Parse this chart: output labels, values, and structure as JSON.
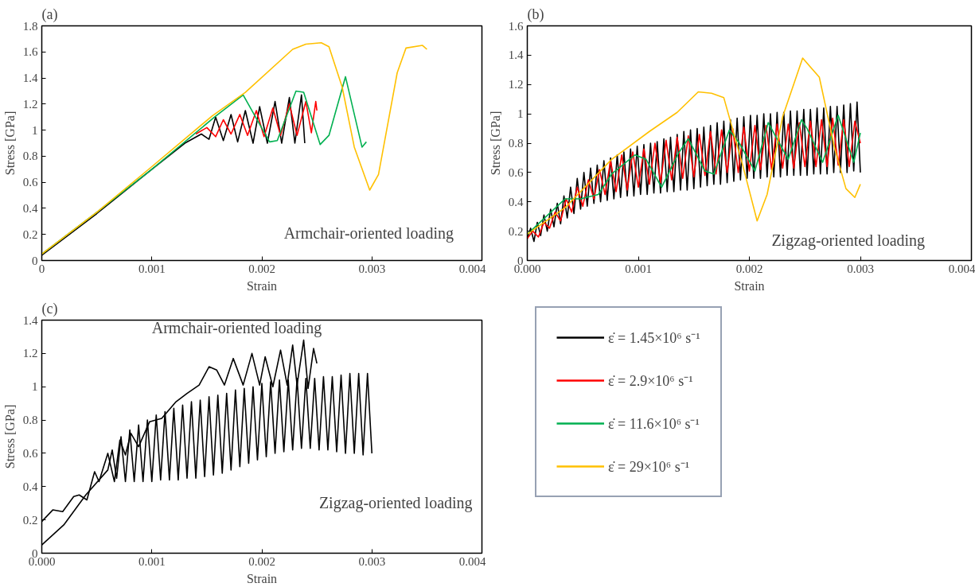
{
  "chart_data": [
    {
      "type": "line",
      "title": "(a)",
      "xlabel": "Strain",
      "ylabel": "Stress [GPa]",
      "xlim": [
        0,
        0.004
      ],
      "ylim": [
        0,
        1.8
      ],
      "xticks": [
        0,
        0.001,
        0.002,
        0.003,
        0.004
      ],
      "yticks": [
        0,
        0.2,
        0.4,
        0.6,
        0.8,
        1,
        1.2,
        1.4,
        1.6,
        1.8
      ],
      "annotations": [
        "Armchair-oriented loading"
      ],
      "series": [
        {
          "color": "#000000",
          "x": [
            0,
            0.0005,
            0.001,
            0.0013,
            0.00145,
            0.00152,
            0.00158,
            0.00165,
            0.00172,
            0.00178,
            0.00185,
            0.00192,
            0.00198,
            0.00205,
            0.00212,
            0.00218,
            0.00225,
            0.0023,
            0.00236,
            0.00239
          ],
          "values": [
            0.04,
            0.36,
            0.7,
            0.9,
            0.97,
            0.93,
            1.1,
            0.92,
            1.12,
            0.91,
            1.15,
            0.9,
            1.18,
            0.9,
            1.22,
            0.9,
            1.25,
            0.9,
            1.27,
            0.9
          ]
        },
        {
          "color": "#ff0000",
          "x": [
            0.0014,
            0.0015,
            0.00158,
            0.00165,
            0.00172,
            0.0018,
            0.00187,
            0.00195,
            0.00202,
            0.0021,
            0.00217,
            0.00225,
            0.00232,
            0.0024,
            0.00245,
            0.00249,
            0.0025
          ],
          "values": [
            0.97,
            1.02,
            0.95,
            1.08,
            0.97,
            1.12,
            0.96,
            1.15,
            0.95,
            1.17,
            0.96,
            1.2,
            0.96,
            1.22,
            0.98,
            1.22,
            1.15
          ]
        },
        {
          "color": "#00b050",
          "x": [
            0,
            0.0005,
            0.001,
            0.00157,
            0.00183,
            0.00207,
            0.00214,
            0.00231,
            0.00238,
            0.00253,
            0.00261,
            0.00276,
            0.00291,
            0.00295
          ],
          "values": [
            0.05,
            0.37,
            0.7,
            1.1,
            1.27,
            0.91,
            0.92,
            1.3,
            1.29,
            0.89,
            0.96,
            1.41,
            0.87,
            0.91
          ]
        },
        {
          "color": "#ffc000",
          "x": [
            0,
            0.0005,
            0.001,
            0.00155,
            0.00185,
            0.00228,
            0.0024,
            0.00254,
            0.00261,
            0.00273,
            0.00284,
            0.00298,
            0.00306,
            0.00323,
            0.00331,
            0.00346,
            0.0035
          ],
          "values": [
            0.05,
            0.37,
            0.72,
            1.11,
            1.29,
            1.62,
            1.66,
            1.67,
            1.64,
            1.33,
            0.87,
            0.54,
            0.66,
            1.44,
            1.63,
            1.65,
            1.62
          ]
        }
      ]
    },
    {
      "type": "line",
      "title": "(b)",
      "xlabel": "Strain",
      "ylabel": "Stress [GPa]",
      "xlim": [
        0,
        0.004
      ],
      "ylim": [
        0,
        1.6
      ],
      "xticks": [
        {
          "value": 0,
          "label": "0.000"
        },
        0.001,
        0.002,
        0.003,
        0.004
      ],
      "yticks": [
        0,
        0.2,
        0.4,
        0.6,
        0.8,
        1,
        1.2,
        1.4,
        1.6
      ],
      "annotations": [
        "Zigzag-oriented loading"
      ],
      "legend": "bottom",
      "series": [
        {
          "name": "ε̇ = 1.45×10⁶ s⁻¹",
          "color": "#000000",
          "x": [
            0,
            3e-05,
            6e-05,
            9e-05,
            0.00012,
            0.00015,
            0.00018,
            0.00021,
            0.00024,
            0.00027,
            0.0003,
            0.00033,
            0.00036,
            0.00039,
            0.00042,
            0.00045,
            0.00048,
            0.00051,
            0.00054,
            0.00057,
            0.0006,
            0.00063,
            0.00066,
            0.00069,
            0.00072,
            0.00075,
            0.00078,
            0.00081,
            0.00084,
            0.00087,
            0.0009,
            0.00093,
            0.00096,
            0.00099,
            0.00102,
            0.00105,
            0.00108,
            0.00111,
            0.00114,
            0.00117,
            0.0012,
            0.00123,
            0.00126,
            0.00129,
            0.00132,
            0.00135,
            0.00138,
            0.00141,
            0.00144,
            0.00147,
            0.0015,
            0.00153,
            0.00156,
            0.00159,
            0.00162,
            0.00165,
            0.00168,
            0.00171,
            0.00174,
            0.00177,
            0.0018,
            0.00183,
            0.00186,
            0.00189,
            0.00192,
            0.00195,
            0.00198,
            0.00201,
            0.00204,
            0.00207,
            0.0021,
            0.00213,
            0.00216,
            0.00219,
            0.00222,
            0.00225,
            0.00228,
            0.00231,
            0.00234,
            0.00237,
            0.0024,
            0.00243,
            0.00246,
            0.00249,
            0.00252,
            0.00255,
            0.00258,
            0.00261,
            0.00264,
            0.00267,
            0.0027,
            0.00273,
            0.00276,
            0.00279,
            0.00282,
            0.00285,
            0.00288,
            0.00291,
            0.00294,
            0.00297,
            0.003
          ],
          "values": [
            0.15,
            0.22,
            0.13,
            0.26,
            0.17,
            0.31,
            0.2,
            0.35,
            0.23,
            0.39,
            0.25,
            0.44,
            0.29,
            0.5,
            0.32,
            0.56,
            0.35,
            0.6,
            0.37,
            0.63,
            0.39,
            0.65,
            0.4,
            0.68,
            0.41,
            0.7,
            0.42,
            0.72,
            0.43,
            0.74,
            0.44,
            0.76,
            0.44,
            0.78,
            0.45,
            0.79,
            0.45,
            0.8,
            0.46,
            0.81,
            0.46,
            0.83,
            0.47,
            0.84,
            0.47,
            0.86,
            0.48,
            0.88,
            0.48,
            0.89,
            0.49,
            0.9,
            0.5,
            0.91,
            0.51,
            0.92,
            0.52,
            0.94,
            0.52,
            0.95,
            0.53,
            0.96,
            0.54,
            0.97,
            0.55,
            0.98,
            0.56,
            0.99,
            0.56,
            0.99,
            0.56,
            1.0,
            0.57,
            1.0,
            0.57,
            1.01,
            0.57,
            1.01,
            0.58,
            1.02,
            0.58,
            1.02,
            0.58,
            1.03,
            0.58,
            1.03,
            0.59,
            1.04,
            0.59,
            1.04,
            0.59,
            1.05,
            0.6,
            1.05,
            0.6,
            1.06,
            0.6,
            1.07,
            0.61,
            1.08,
            0.6
          ]
        },
        {
          "name": "ε̇ = 2.9×10⁶ s⁻¹",
          "color": "#ff0000",
          "x": [
            0,
            5e-05,
            0.0001,
            0.00015,
            0.0002,
            0.00025,
            0.0003,
            0.00035,
            0.0004,
            0.00045,
            0.0005,
            0.00055,
            0.0006,
            0.00065,
            0.0007,
            0.00075,
            0.0008,
            0.00085,
            0.0009,
            0.00095,
            0.001,
            0.00105,
            0.0011,
            0.00115,
            0.0012,
            0.00125,
            0.0013,
            0.00135,
            0.0014,
            0.00145,
            0.0015,
            0.00155,
            0.0016,
            0.00165,
            0.0017,
            0.00175,
            0.0018,
            0.00185,
            0.0019,
            0.00195,
            0.002,
            0.00205,
            0.0021,
            0.00215,
            0.0022,
            0.00225,
            0.0023,
            0.00235,
            0.0024,
            0.00245,
            0.0025,
            0.00255,
            0.0026,
            0.00265,
            0.0027,
            0.00275,
            0.0028,
            0.00285,
            0.0029,
            0.00295,
            0.003
          ],
          "values": [
            0.15,
            0.2,
            0.16,
            0.26,
            0.22,
            0.33,
            0.27,
            0.42,
            0.33,
            0.5,
            0.37,
            0.55,
            0.42,
            0.62,
            0.45,
            0.68,
            0.47,
            0.72,
            0.48,
            0.74,
            0.5,
            0.76,
            0.52,
            0.8,
            0.53,
            0.82,
            0.55,
            0.84,
            0.56,
            0.85,
            0.57,
            0.86,
            0.58,
            0.88,
            0.59,
            0.89,
            0.6,
            0.9,
            0.6,
            0.91,
            0.61,
            0.92,
            0.62,
            0.92,
            0.62,
            0.93,
            0.63,
            0.93,
            0.63,
            0.94,
            0.64,
            0.95,
            0.64,
            0.96,
            0.64,
            0.97,
            0.65,
            0.96,
            0.64,
            0.95,
            0.8
          ]
        },
        {
          "name": "ε̇ = 11.6×10⁶ s⁻¹",
          "color": "#00b050",
          "x": [
            0,
            0.00034,
            0.00048,
            0.00064,
            0.00076,
            0.00097,
            0.00107,
            0.00121,
            0.00136,
            0.00145,
            0.0016,
            0.00168,
            0.00182,
            0.00191,
            0.00205,
            0.00217,
            0.00227,
            0.00235,
            0.00247,
            0.00252,
            0.00266,
            0.0028,
            0.00294,
            0.003
          ],
          "values": [
            0.18,
            0.42,
            0.42,
            0.45,
            0.59,
            0.72,
            0.69,
            0.5,
            0.73,
            0.83,
            0.61,
            0.59,
            0.89,
            0.8,
            0.61,
            0.94,
            0.8,
            0.69,
            0.96,
            0.9,
            0.67,
            0.99,
            0.67,
            0.87
          ]
        },
        {
          "name": "ε̇ = 29×10⁶ s⁻¹",
          "color": "#ffc000",
          "x": [
            0,
            0.00034,
            0.00076,
            0.0011,
            0.00135,
            0.00154,
            0.00166,
            0.00177,
            0.00194,
            0.00207,
            0.00216,
            0.0023,
            0.00248,
            0.00263,
            0.00277,
            0.00287,
            0.00295,
            0.003
          ],
          "values": [
            0.18,
            0.36,
            0.69,
            0.88,
            1.01,
            1.15,
            1.14,
            1.11,
            0.65,
            0.27,
            0.45,
            0.98,
            1.38,
            1.25,
            0.76,
            0.49,
            0.43,
            0.52
          ]
        }
      ]
    },
    {
      "type": "line",
      "title": "(c)",
      "xlabel": "Strain",
      "ylabel": "Stress [GPa]",
      "xlim": [
        0,
        0.004
      ],
      "ylim": [
        0,
        1.4
      ],
      "xticks": [
        {
          "value": 0,
          "label": "0.000"
        },
        0.001,
        0.002,
        0.003,
        0.004
      ],
      "yticks": [
        0,
        0.2,
        0.4,
        0.6,
        0.8,
        1,
        1.2,
        1.4
      ],
      "annotations": [
        "Armchair-oriented loading",
        "Zigzag-oriented loading"
      ],
      "series": [
        {
          "color": "#000000",
          "x": [
            0,
            0.0001,
            0.00019,
            0.00029,
            0.00034,
            0.00041,
            0.00048,
            0.00052,
            0.0006,
            0.00066,
            0.00071,
            0.00076,
            0.00081,
            0.00088,
            0.00098,
            0.00109,
            0.00122,
            0.00132,
            0.00143,
            0.00152,
            0.00159,
            0.00166,
            0.00174,
            0.00183,
            0.00191,
            0.00198,
            0.00203,
            0.0021,
            0.00217,
            0.00223,
            0.00228,
            0.00232,
            0.00238,
            0.00242,
            0.00247,
            0.0025
          ],
          "values": [
            0.19,
            0.26,
            0.25,
            0.34,
            0.35,
            0.32,
            0.49,
            0.43,
            0.6,
            0.43,
            0.68,
            0.59,
            0.72,
            0.64,
            0.79,
            0.81,
            0.91,
            0.96,
            1.01,
            1.12,
            1.1,
            1.01,
            1.17,
            1.01,
            1.2,
            1.01,
            1.18,
            1.0,
            1.22,
            1.01,
            1.25,
            1.01,
            1.28,
            0.99,
            1.23,
            1.14
          ]
        },
        {
          "color": "#000000",
          "x": [
            0,
            0.0002,
            0.0004,
            0.0006,
            0.00064,
            0.00068,
            0.00072,
            0.00076,
            0.0008,
            0.00084,
            0.00088,
            0.00092,
            0.00096,
            0.001,
            0.00104,
            0.00108,
            0.00112,
            0.00116,
            0.0012,
            0.00124,
            0.00128,
            0.00132,
            0.00136,
            0.0014,
            0.00144,
            0.00148,
            0.00152,
            0.00156,
            0.0016,
            0.00164,
            0.00168,
            0.00172,
            0.00176,
            0.0018,
            0.00184,
            0.00188,
            0.00192,
            0.00196,
            0.002,
            0.00204,
            0.00208,
            0.00212,
            0.00216,
            0.0022,
            0.00224,
            0.00228,
            0.00232,
            0.00236,
            0.0024,
            0.00244,
            0.00248,
            0.00252,
            0.00256,
            0.0026,
            0.00264,
            0.00268,
            0.00272,
            0.00276,
            0.0028,
            0.00284,
            0.00288,
            0.00292,
            0.00296,
            0.003
          ],
          "values": [
            0.05,
            0.17,
            0.35,
            0.5,
            0.62,
            0.45,
            0.7,
            0.43,
            0.74,
            0.43,
            0.77,
            0.43,
            0.8,
            0.43,
            0.83,
            0.44,
            0.85,
            0.44,
            0.87,
            0.44,
            0.89,
            0.45,
            0.91,
            0.45,
            0.92,
            0.46,
            0.94,
            0.47,
            0.95,
            0.48,
            0.96,
            0.5,
            0.98,
            0.52,
            0.99,
            0.54,
            1.0,
            0.56,
            1.02,
            0.58,
            1.03,
            0.6,
            1.04,
            0.61,
            1.04,
            0.62,
            1.05,
            0.63,
            1.05,
            0.63,
            1.05,
            0.62,
            1.06,
            0.62,
            1.06,
            0.61,
            1.07,
            0.6,
            1.08,
            0.6,
            1.08,
            0.59,
            1.08,
            0.6
          ]
        }
      ]
    }
  ]
}
